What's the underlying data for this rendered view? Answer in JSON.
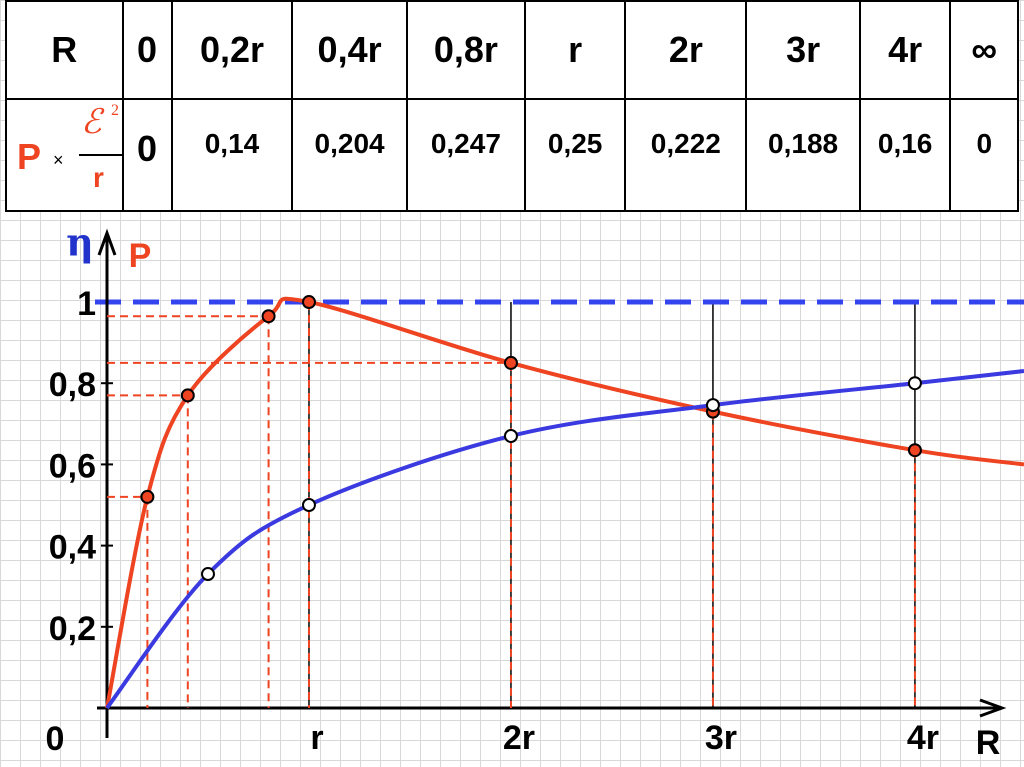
{
  "table": {
    "header": [
      "R",
      "0",
      "0,2r",
      "0,4r",
      "0,8r",
      "r",
      "2r",
      "3r",
      "4r",
      "∞"
    ],
    "row_label": {
      "symbol": "P",
      "times": "×",
      "numerator": "ℰ",
      "exponent": "2",
      "denominator": "r"
    },
    "values": [
      "0",
      "0,14",
      "0,204",
      "0,247",
      "0,25",
      "0,222",
      "0,188",
      "0,16",
      "0"
    ]
  },
  "chart_data": {
    "type": "line",
    "y_label": "η",
    "y_label_2": "P",
    "x_label": "R",
    "xlim": [
      0,
      4.54
    ],
    "ylim": [
      0,
      1.17
    ],
    "xticks": [
      {
        "value": 1,
        "label": "r"
      },
      {
        "value": 2,
        "label": "2r"
      },
      {
        "value": 3,
        "label": "3r"
      },
      {
        "value": 4,
        "label": "4r"
      }
    ],
    "yticks": [
      0,
      {
        "value": 0.2,
        "label": "0,2"
      },
      {
        "value": 0.4,
        "label": "0,4"
      },
      {
        "value": 0.6,
        "label": "0,6"
      },
      {
        "value": 0.8,
        "label": "0,8"
      },
      1
    ],
    "reference_line": 1,
    "series": [
      {
        "color": "#ee4422",
        "x": [
          0,
          0.2,
          0.4,
          0.8,
          1,
          2,
          3,
          4,
          4.54
        ],
        "values": [
          0,
          0.52,
          0.77,
          0.965,
          1,
          0.85,
          0.73,
          0.635,
          0.6
        ]
      },
      {
        "color": "#3a3ae0",
        "x": [
          0,
          0.5,
          1,
          2,
          3,
          4,
          4.54
        ],
        "values": [
          0,
          0.33,
          0.5,
          0.67,
          0.746,
          0.8,
          0.83
        ]
      }
    ]
  }
}
